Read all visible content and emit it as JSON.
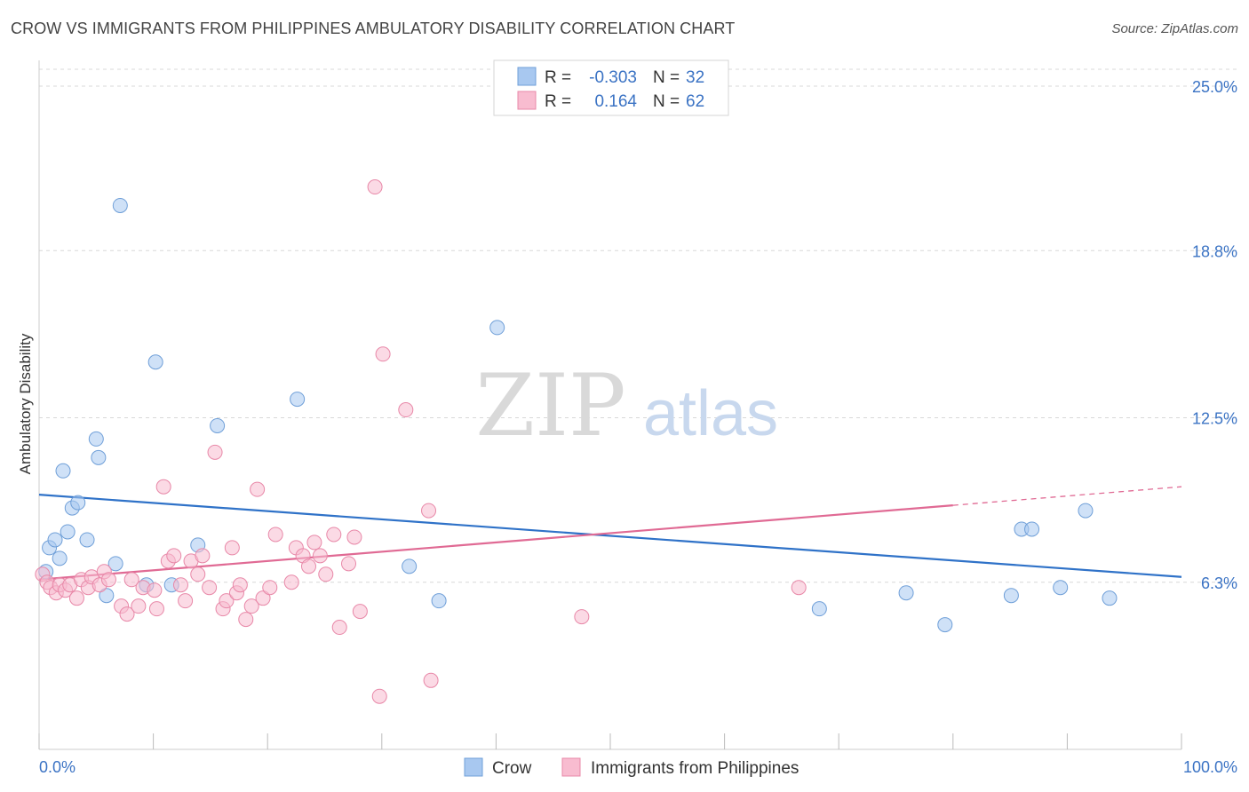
{
  "title": "CROW VS IMMIGRANTS FROM PHILIPPINES AMBULATORY DISABILITY CORRELATION CHART",
  "source": "Source: ZipAtlas.com",
  "watermark": {
    "zip": "ZIP",
    "atlas": "atlas"
  },
  "legend_top": {
    "rows": [
      {
        "r_label": "R = ",
        "r_value": "-0.303",
        "n_label": "N = ",
        "n_value": "32",
        "color": "#a8c8f0",
        "edge": "#6f9fd8"
      },
      {
        "r_label": "R = ",
        "r_value": "0.164",
        "n_label": "N = ",
        "n_value": "62",
        "color": "#f8bcd0",
        "edge": "#e888a8"
      }
    ]
  },
  "colors": {
    "crow_fill": "#a8c8f0",
    "crow_edge": "#6f9fd8",
    "crow_line": "#2f72c8",
    "phil_fill": "#f8bcd0",
    "phil_edge": "#e888a8",
    "phil_line": "#e06a94",
    "grid": "#d8d8d8",
    "axis_text": "#3b73c4"
  },
  "chart_data": {
    "type": "scatter",
    "title": "CROW VS IMMIGRANTS FROM PHILIPPINES AMBULATORY DISABILITY CORRELATION CHART",
    "xlabel": "",
    "ylabel": "Ambulatory Disability",
    "xlim": [
      0,
      100
    ],
    "ylim": [
      0,
      25.0
    ],
    "x_tick_labels": [
      "0.0%",
      "100.0%"
    ],
    "y_ticks": [
      6.3,
      12.5,
      18.8,
      25.0
    ],
    "y_tick_labels": [
      "6.3%",
      "12.5%",
      "18.8%",
      "25.0%"
    ],
    "grid": true,
    "legend": "bottom-center",
    "series": [
      {
        "name": "Crow",
        "r": -0.303,
        "n": 32,
        "trend": {
          "x": [
            0,
            100
          ],
          "y": [
            9.6,
            6.5
          ]
        },
        "points": [
          [
            0.6,
            6.7
          ],
          [
            0.9,
            7.6
          ],
          [
            1.4,
            7.9
          ],
          [
            1.8,
            7.2
          ],
          [
            2.1,
            10.5
          ],
          [
            2.5,
            8.2
          ],
          [
            2.9,
            9.1
          ],
          [
            3.4,
            9.3
          ],
          [
            4.2,
            7.9
          ],
          [
            5.0,
            11.7
          ],
          [
            5.2,
            11.0
          ],
          [
            5.9,
            5.8
          ],
          [
            6.7,
            7.0
          ],
          [
            7.1,
            20.5
          ],
          [
            9.4,
            6.2
          ],
          [
            10.2,
            14.6
          ],
          [
            11.6,
            6.2
          ],
          [
            13.9,
            7.7
          ],
          [
            15.6,
            12.2
          ],
          [
            22.6,
            13.2
          ],
          [
            32.4,
            6.9
          ],
          [
            35.0,
            5.6
          ],
          [
            40.1,
            15.9
          ],
          [
            68.3,
            5.3
          ],
          [
            75.9,
            5.9
          ],
          [
            79.3,
            4.7
          ],
          [
            85.1,
            5.8
          ],
          [
            86.0,
            8.3
          ],
          [
            86.9,
            8.3
          ],
          [
            89.4,
            6.1
          ],
          [
            91.6,
            9.0
          ],
          [
            93.7,
            5.7
          ]
        ]
      },
      {
        "name": "Immigrants from Philippines",
        "r": 0.164,
        "n": 62,
        "trend": {
          "x": [
            0,
            80
          ],
          "y": [
            6.4,
            9.2
          ],
          "dashed_to": {
            "x": 100,
            "y": 9.9
          }
        },
        "points": [
          [
            0.3,
            6.6
          ],
          [
            0.7,
            6.3
          ],
          [
            1.0,
            6.1
          ],
          [
            1.5,
            5.9
          ],
          [
            1.8,
            6.2
          ],
          [
            2.3,
            6.0
          ],
          [
            2.7,
            6.2
          ],
          [
            3.3,
            5.7
          ],
          [
            3.7,
            6.4
          ],
          [
            4.3,
            6.1
          ],
          [
            4.6,
            6.5
          ],
          [
            5.3,
            6.2
          ],
          [
            5.7,
            6.7
          ],
          [
            6.1,
            6.4
          ],
          [
            7.2,
            5.4
          ],
          [
            7.7,
            5.1
          ],
          [
            8.1,
            6.4
          ],
          [
            8.7,
            5.4
          ],
          [
            9.1,
            6.1
          ],
          [
            10.1,
            6.0
          ],
          [
            10.3,
            5.3
          ],
          [
            10.9,
            9.9
          ],
          [
            11.3,
            7.1
          ],
          [
            11.8,
            7.3
          ],
          [
            12.4,
            6.2
          ],
          [
            12.8,
            5.6
          ],
          [
            13.3,
            7.1
          ],
          [
            13.9,
            6.6
          ],
          [
            14.3,
            7.3
          ],
          [
            14.9,
            6.1
          ],
          [
            15.4,
            11.2
          ],
          [
            16.1,
            5.3
          ],
          [
            16.4,
            5.6
          ],
          [
            16.9,
            7.6
          ],
          [
            17.3,
            5.9
          ],
          [
            17.6,
            6.2
          ],
          [
            18.1,
            4.9
          ],
          [
            18.6,
            5.4
          ],
          [
            19.1,
            9.8
          ],
          [
            19.6,
            5.7
          ],
          [
            20.2,
            6.1
          ],
          [
            20.7,
            8.1
          ],
          [
            22.1,
            6.3
          ],
          [
            22.5,
            7.6
          ],
          [
            23.1,
            7.3
          ],
          [
            23.6,
            6.9
          ],
          [
            24.1,
            7.8
          ],
          [
            24.6,
            7.3
          ],
          [
            25.1,
            6.6
          ],
          [
            25.8,
            8.1
          ],
          [
            26.3,
            4.6
          ],
          [
            27.1,
            7.0
          ],
          [
            27.6,
            8.0
          ],
          [
            28.1,
            5.2
          ],
          [
            29.4,
            21.2
          ],
          [
            29.8,
            2.0
          ],
          [
            30.1,
            14.9
          ],
          [
            32.1,
            12.8
          ],
          [
            34.1,
            9.0
          ],
          [
            34.3,
            2.6
          ],
          [
            47.5,
            5.0
          ],
          [
            66.5,
            6.1
          ]
        ]
      }
    ]
  },
  "bottom_legend": {
    "items": [
      {
        "label": "Crow",
        "color": "#a8c8f0",
        "edge": "#6f9fd8"
      },
      {
        "label": "Immigrants from Philippines",
        "color": "#f8bcd0",
        "edge": "#e888a8"
      }
    ]
  }
}
